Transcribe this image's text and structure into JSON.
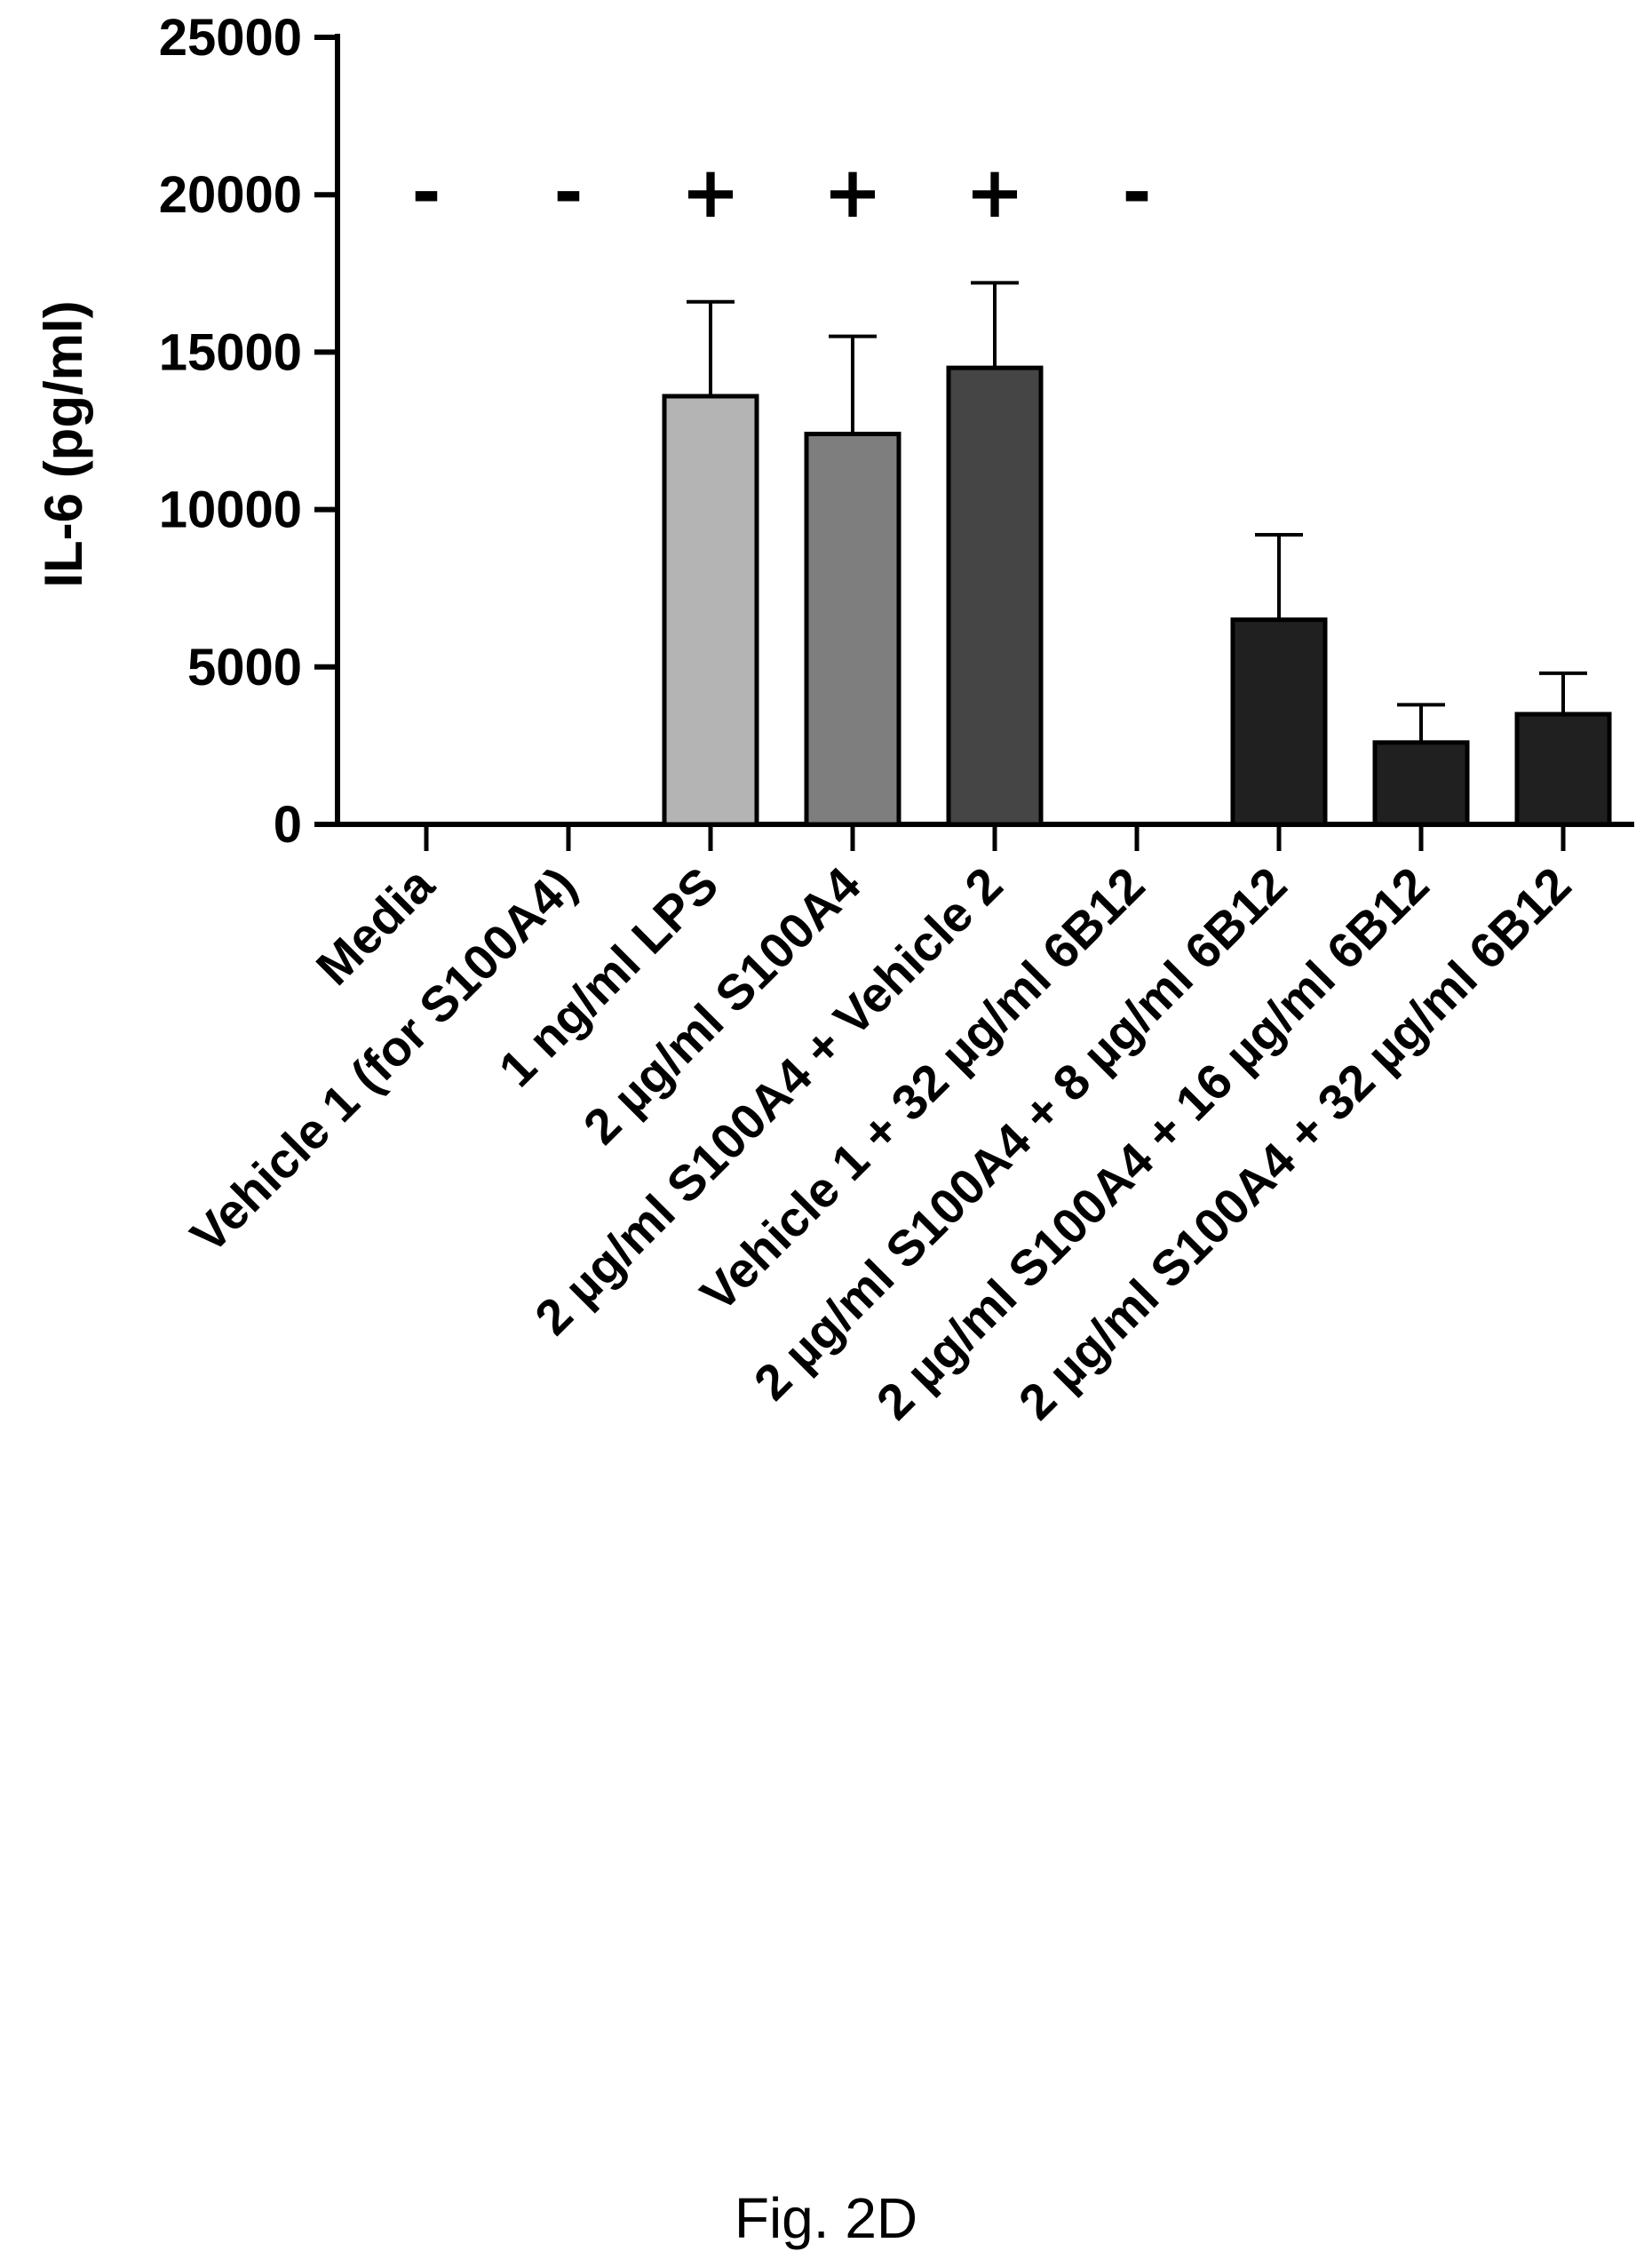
{
  "chart_data": {
    "type": "bar",
    "ylabel": "IL-6 (pg/ml)",
    "ylim": [
      0,
      25000
    ],
    "yticks": [
      0,
      5000,
      10000,
      15000,
      20000,
      25000
    ],
    "ytick_labels": [
      "0",
      "5000",
      "10000",
      "15000",
      "20000",
      "25000"
    ],
    "grid": false,
    "categories": [
      "Media",
      "Vehicle 1 (for S100A4)",
      "1 ng/ml LPS",
      "2 µg/ml S100A4",
      "2 µg/ml S100A4 + Vehicle 2",
      "Vehicle 1 + 32 µg/ml 6B12",
      "2 µg/ml S100A4 + 8 µg/ml 6B12",
      "2 µg/ml S100A4 + 16 µg/ml 6B12",
      "2 µg/ml S100A4 + 32 µg/ml 6B12"
    ],
    "values": [
      0,
      0,
      13600,
      12400,
      14500,
      0,
      6500,
      2600,
      3500
    ],
    "error_upper": [
      0,
      0,
      16600,
      15500,
      17200,
      0,
      9200,
      3800,
      4800
    ],
    "bar_colors": [
      "#ffffff",
      "#ffffff",
      "#b4b4b4",
      "#7e7e7e",
      "#454545",
      "#ffffff",
      "#202020",
      "#202020",
      "#202020"
    ],
    "annotations": [
      "-",
      "-",
      "+",
      "+",
      "+",
      "-",
      "",
      "",
      ""
    ]
  },
  "caption": "Fig. 2D"
}
